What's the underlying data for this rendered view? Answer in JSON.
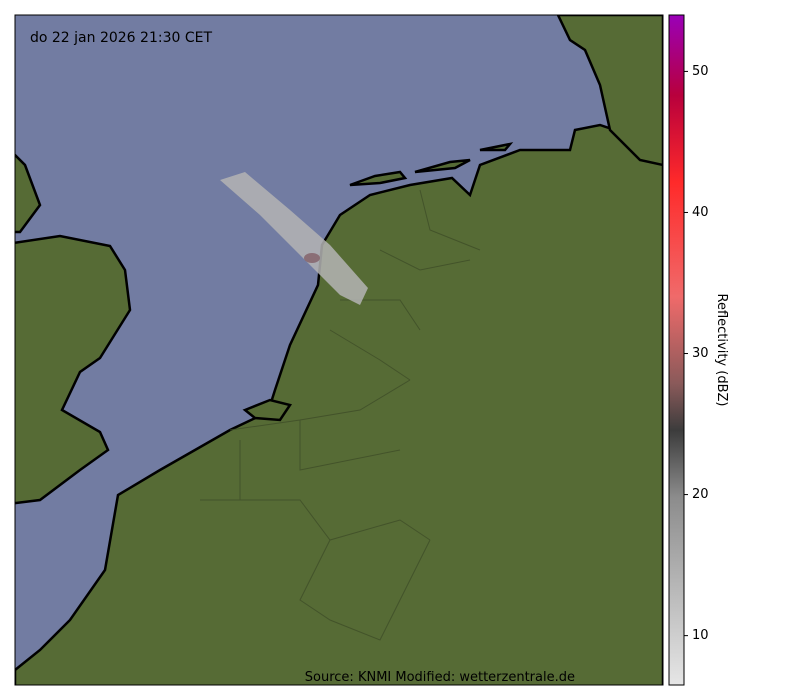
{
  "map": {
    "title": "do 22 jan 2026 21:30 CET",
    "source": "Source: KNMI Modified: wetterzentrale.de"
  },
  "colorbar": {
    "label": "Reflectivity (dBZ)",
    "lim": [
      6.5,
      54
    ],
    "ticks": [
      10,
      20,
      30,
      40,
      50
    ]
  }
}
